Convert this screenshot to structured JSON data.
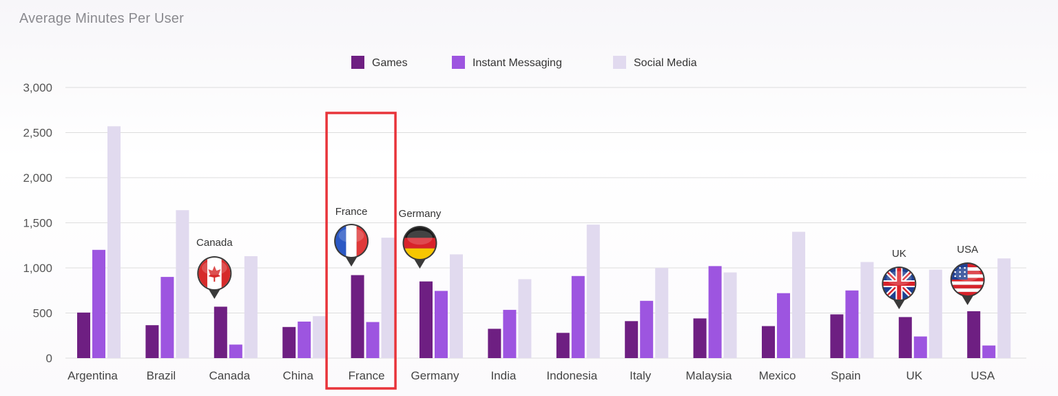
{
  "title": "Average Minutes Per User",
  "colors": {
    "games": "#6e1f82",
    "messaging": "#9d55e0",
    "social": "#e1daef",
    "grid": "#dddddd",
    "highlight": "#e8343a"
  },
  "chart_data": {
    "type": "bar",
    "title": "Average Minutes Per User",
    "xlabel": "",
    "ylabel": "",
    "ylim": [
      0,
      3000
    ],
    "yticks": [
      0,
      500,
      1000,
      1500,
      2000,
      2500,
      3000
    ],
    "ytick_labels": [
      "0",
      "500",
      "1,000",
      "1,500",
      "2,000",
      "2,500",
      "3,000"
    ],
    "grid": true,
    "legend_position": "top-center",
    "categories": [
      "Argentina",
      "Brazil",
      "Canada",
      "China",
      "France",
      "Germany",
      "India",
      "Indonesia",
      "Italy",
      "Malaysia",
      "Mexico",
      "Spain",
      "UK",
      "USA"
    ],
    "series": [
      {
        "name": "Games",
        "color": "#6e1f82",
        "values": [
          505,
          365,
          570,
          345,
          920,
          850,
          325,
          280,
          410,
          440,
          355,
          485,
          455,
          520
        ]
      },
      {
        "name": "Instant Messaging",
        "color": "#9d55e0",
        "values": [
          1200,
          900,
          150,
          405,
          400,
          745,
          535,
          910,
          635,
          1020,
          720,
          750,
          240,
          140
        ]
      },
      {
        "name": "Social Media",
        "color": "#e1daef",
        "values": [
          2570,
          1640,
          1130,
          465,
          1335,
          1150,
          875,
          1480,
          1000,
          950,
          1400,
          1065,
          980,
          1105
        ]
      }
    ],
    "annotations": [
      {
        "category": "Canada",
        "label": "Canada",
        "flag": "canada-flag-icon"
      },
      {
        "category": "France",
        "label": "France",
        "flag": "france-flag-icon"
      },
      {
        "category": "Germany",
        "label": "Germany",
        "flag": "germany-flag-icon"
      },
      {
        "category": "UK",
        "label": "UK",
        "flag": "uk-flag-icon"
      },
      {
        "category": "USA",
        "label": "USA",
        "flag": "usa-flag-icon"
      }
    ],
    "highlighted_category": "France"
  }
}
